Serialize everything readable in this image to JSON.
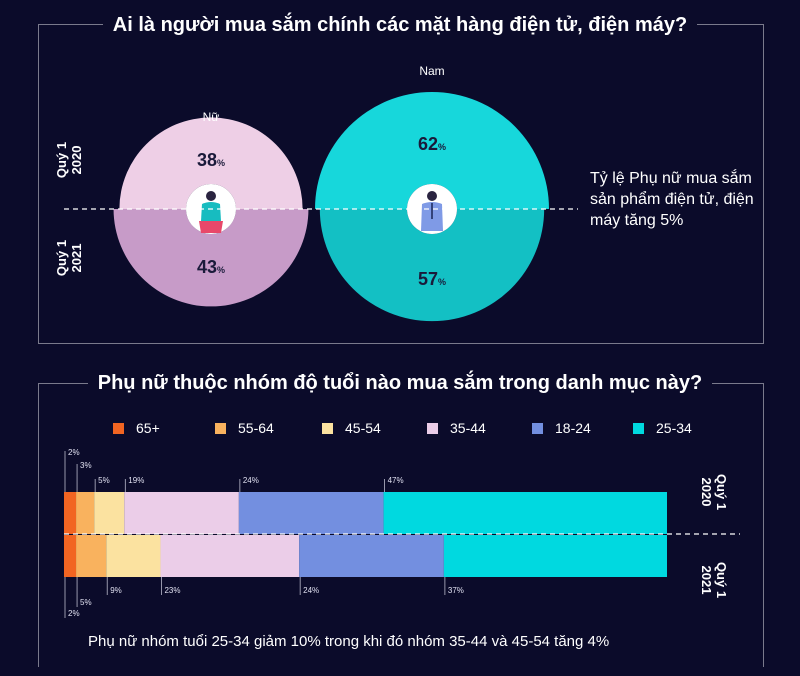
{
  "top": {
    "title": "Ai là người mua sắm chính các mặt hàng điện tử, điện máy?",
    "female_label": "Nữ",
    "male_label": "Nam",
    "period_top": [
      "Quý 1",
      "2020"
    ],
    "period_bottom": [
      "Quý 1",
      "2021"
    ],
    "note": "Tỷ lệ Phụ nữ mua sắm sản phẩm điện tử, điện máy tăng 5%"
  },
  "bottom": {
    "title": "Phụ nữ thuộc nhóm độ tuổi nào mua sắm trong danh mục này?",
    "period_top": [
      "Quý 1",
      "2020"
    ],
    "period_bottom": [
      "Quý 1",
      "2021"
    ],
    "note": "Phụ nữ nhóm tuổi 25-34 giảm 10% trong khi đó nhóm 35-44 và 45-54 tăng 4%"
  },
  "chart_data": [
    {
      "type": "pie",
      "title": "Ai là người mua sắm chính các mặt hàng điện tử, điện máy?",
      "series": [
        {
          "name": "Quý 1 2020",
          "slices": [
            {
              "label": "Nữ",
              "value": 38,
              "display": "38%"
            },
            {
              "label": "Nam",
              "value": 62,
              "display": "62%"
            }
          ]
        },
        {
          "name": "Quý 1 2021",
          "slices": [
            {
              "label": "Nữ",
              "value": 43,
              "display": "43%"
            },
            {
              "label": "Nam",
              "value": 57,
              "display": "57%"
            }
          ]
        }
      ],
      "colors": {
        "female_2020": "#eecfe6",
        "female_2021": "#c79bc8",
        "male_2020": "#17d7db",
        "male_2021": "#13c0c4"
      }
    },
    {
      "type": "bar",
      "orientation": "horizontal",
      "stacked": true,
      "title": "Phụ nữ thuộc nhóm độ tuổi nào mua sắm trong danh mục này?",
      "categories": [
        "Quý 1 2020",
        "Quý 1 2021"
      ],
      "series": [
        {
          "name": "65+",
          "color": "#f26522",
          "values": [
            2,
            2
          ],
          "labels": [
            "2%",
            "2%"
          ]
        },
        {
          "name": "55-64",
          "color": "#f9b25e",
          "values": [
            3,
            5
          ],
          "labels": [
            "3%",
            "5%"
          ]
        },
        {
          "name": "45-54",
          "color": "#fbe2a0",
          "values": [
            5,
            9
          ],
          "labels": [
            "5%",
            "9%"
          ]
        },
        {
          "name": "35-44",
          "color": "#ebcde8",
          "values": [
            19,
            23
          ],
          "labels": [
            "19%",
            "23%"
          ]
        },
        {
          "name": "18-24",
          "color": "#738fe0",
          "values": [
            24,
            24
          ],
          "labels": [
            "24%",
            "24%"
          ]
        },
        {
          "name": "25-34",
          "color": "#00d9e0",
          "values": [
            47,
            37
          ],
          "labels": [
            "47%",
            "37%"
          ]
        }
      ],
      "legend_position": "top"
    }
  ]
}
